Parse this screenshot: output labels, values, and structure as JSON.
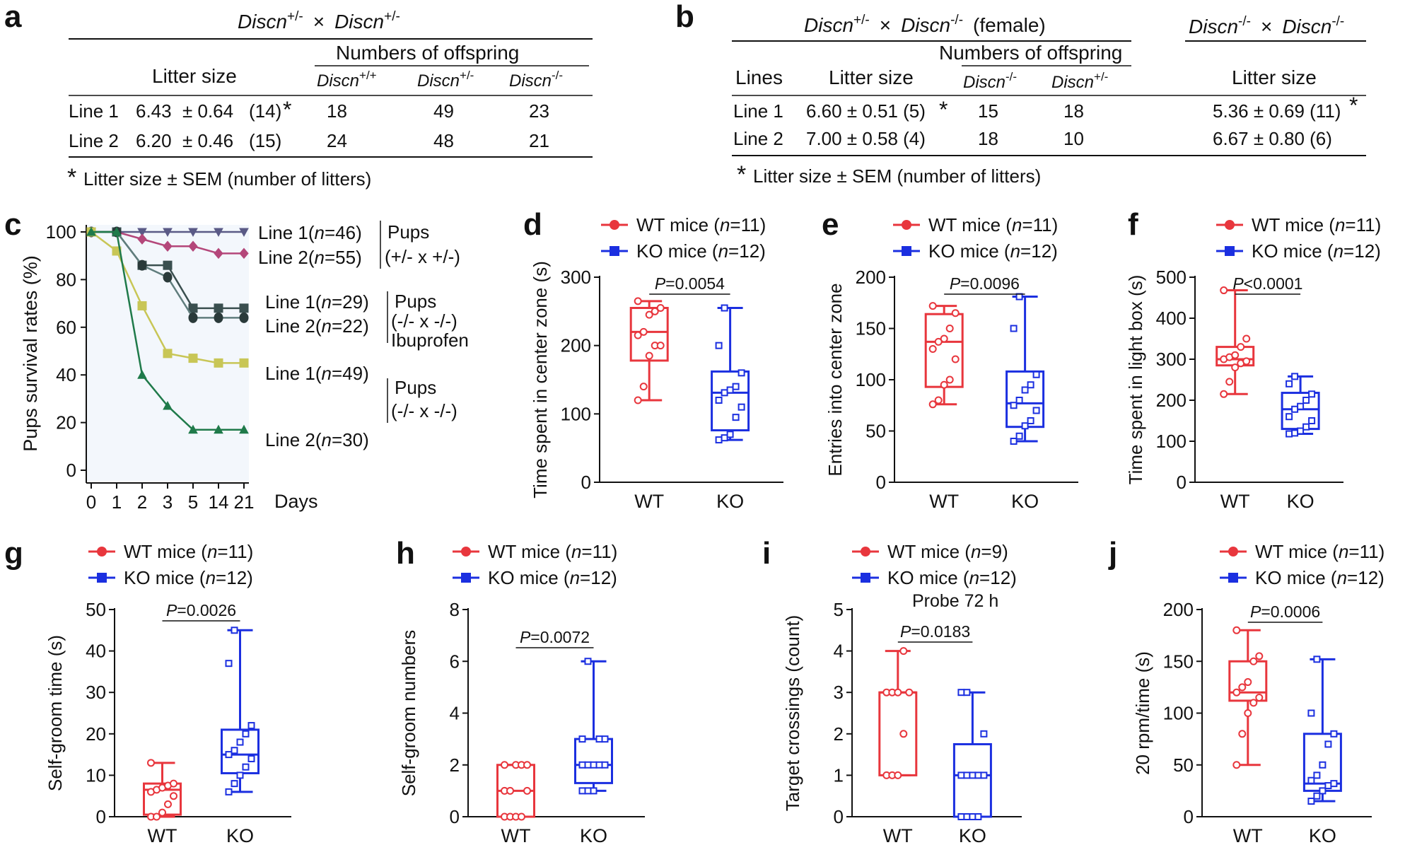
{
  "panel_labels": [
    "a",
    "b",
    "c",
    "d",
    "e",
    "f",
    "g",
    "h",
    "i",
    "j"
  ],
  "panel_a": {
    "cross_gene1": "Discn",
    "cross_sup1": "+/-",
    "cross_x": "×",
    "cross_gene2": "Discn",
    "cross_sup2": "+/-",
    "col_litter": "Litter size",
    "col_offspring": "Numbers of offspring",
    "geno": [
      {
        "gene": "Discn",
        "sup": "+/+"
      },
      {
        "gene": "Discn",
        "sup": "+/-"
      },
      {
        "gene": "Discn",
        "sup": "-/-"
      }
    ],
    "rows": [
      {
        "line": "Line 1",
        "mean": "6.43",
        "sem": "± 0.64",
        "n": "(14)",
        "star": "*",
        "c1": "18",
        "c2": "49",
        "c3": "23"
      },
      {
        "line": "Line 2",
        "mean": "6.20",
        "sem": "± 0.46",
        "n": "(15)",
        "star": "",
        "c1": "24",
        "c2": "48",
        "c3": "21"
      }
    ],
    "footnote_star": "*",
    "footnote": "Litter size ± SEM (number of litters)"
  },
  "panel_b": {
    "cross1_gene1": "Discn",
    "cross1_sup1": "+/-",
    "cross1_x": "×",
    "cross1_gene2": "Discn",
    "cross1_sup2": "-/-",
    "cross1_suffix": "(female)",
    "cross2_gene1": "Discn",
    "cross2_sup1": "-/-",
    "cross2_x": "×",
    "cross2_gene2": "Discn",
    "cross2_sup2": "-/-",
    "col_lines": "Lines",
    "col_litter": "Litter size",
    "col_offspring": "Numbers of offspring",
    "col_litter2": "Litter size",
    "geno": [
      {
        "gene": "Discn",
        "sup": "-/-"
      },
      {
        "gene": "Discn",
        "sup": "+/-"
      }
    ],
    "rows": [
      {
        "line": "Line 1",
        "litter": "6.60 ± 0.51 (5)",
        "star": "*",
        "c1": "15",
        "c2": "18",
        "litter2": "5.36 ± 0.69 (11)",
        "star2": "*"
      },
      {
        "line": "Line 2",
        "litter": "7.00 ± 0.58 (4)",
        "star": "",
        "c1": "18",
        "c2": "10",
        "litter2": "6.67 ± 0.80  (6)",
        "star2": ""
      }
    ],
    "footnote_star": "*",
    "footnote": "Litter size ± SEM (number of litters)"
  },
  "panel_c": {
    "ylabel": "Pups survival rates (%)",
    "xlabel": "Days",
    "x_ticks": [
      "0",
      "1",
      "2",
      "3",
      "5",
      "14",
      "21"
    ],
    "y_ticks": [
      "0",
      "20",
      "40",
      "60",
      "80",
      "100"
    ],
    "series": [
      {
        "name": "Line 1(n=46)",
        "label_pre": "Line 1(",
        "label_n": "n",
        "label_post": "=46)",
        "color": "#5a5a86",
        "marker": "tri-down",
        "values": [
          100,
          100,
          100,
          100,
          100,
          100,
          100
        ]
      },
      {
        "name": "Line 2(n=55)",
        "label_pre": "Line 2(",
        "label_n": "n",
        "label_post": "=55)",
        "color": "#b4477a",
        "marker": "diamond",
        "values": [
          100,
          100,
          97,
          94,
          94,
          91,
          91
        ]
      },
      {
        "name": "Line 1(n=29)",
        "label_pre": "Line 1(",
        "label_n": "n",
        "label_post": "=29)",
        "color": "#3a4f4f",
        "marker": "square",
        "values": [
          100,
          100,
          86,
          86,
          68,
          68,
          68
        ]
      },
      {
        "name": "Line 2(n=22)",
        "label_pre": "Line 2(",
        "label_n": "n",
        "label_post": "=22)",
        "color": "#607d7d",
        "marker": "hex",
        "values": [
          100,
          100,
          86,
          81,
          64,
          64,
          64
        ]
      },
      {
        "name": "Line 1(n=49)",
        "label_pre": "Line 1(",
        "label_n": "n",
        "label_post": "=49)",
        "color": "#c8c656",
        "marker": "square-fill",
        "values": [
          100,
          92,
          69,
          49,
          47,
          45,
          45
        ]
      },
      {
        "name": "Line 2(n=30)",
        "label_pre": "Line 2(",
        "label_n": "n",
        "label_post": "=30)",
        "color": "#1f7a4a",
        "marker": "triangle",
        "values": [
          100,
          100,
          40,
          27,
          17,
          17,
          17
        ]
      }
    ],
    "group1": [
      "Pups",
      "(+/- x +/-)"
    ],
    "group2": [
      "Pups",
      "(-/- x -/-)",
      "Ibuprofen"
    ],
    "group3": [
      "Pups",
      "(-/- x -/-)"
    ]
  },
  "box_legend": {
    "wt_label": "WT mice",
    "ko_label": "KO mice",
    "n_italic": "n"
  },
  "chart_data": [
    {
      "panel": "d",
      "type": "box",
      "ylabel": "Time spent in center zone (s)",
      "ylim": [
        0,
        300
      ],
      "yticks": [
        "0",
        "100",
        "200",
        "300"
      ],
      "categories": [
        "WT",
        "KO"
      ],
      "wt_n": "=11",
      "ko_n": "=12",
      "p_label": "P",
      "p_value": "=0.0054",
      "groups": [
        {
          "name": "WT",
          "min": 120,
          "q1": 178,
          "median": 220,
          "q3": 255,
          "max": 265,
          "points": [
            120,
            140,
            185,
            200,
            200,
            215,
            220,
            245,
            250,
            255,
            265
          ]
        },
        {
          "name": "KO",
          "min": 62,
          "q1": 76,
          "median": 131,
          "q3": 162,
          "max": 255,
          "points": [
            62,
            65,
            70,
            95,
            110,
            120,
            131,
            135,
            140,
            160,
            200,
            255
          ]
        }
      ]
    },
    {
      "panel": "e",
      "type": "box",
      "ylabel": "Entries into center zone",
      "ylim": [
        0,
        200
      ],
      "yticks": [
        "0",
        "50",
        "100",
        "150",
        "200"
      ],
      "categories": [
        "WT",
        "KO"
      ],
      "wt_n": "=11",
      "ko_n": "=12",
      "p_label": "P",
      "p_value": "=0.0096",
      "groups": [
        {
          "name": "WT",
          "min": 76,
          "q1": 93,
          "median": 137,
          "q3": 164,
          "max": 172,
          "points": [
            76,
            80,
            95,
            100,
            120,
            130,
            137,
            140,
            150,
            165,
            172
          ]
        },
        {
          "name": "KO",
          "min": 40,
          "q1": 54,
          "median": 77,
          "q3": 108,
          "max": 181,
          "points": [
            40,
            45,
            55,
            60,
            70,
            75,
            80,
            90,
            95,
            105,
            150,
            181
          ]
        }
      ]
    },
    {
      "panel": "f",
      "type": "box",
      "ylabel": "Time spent in light box (s)",
      "ylim": [
        0,
        500
      ],
      "yticks": [
        "0",
        "100",
        "200",
        "300",
        "400",
        "500"
      ],
      "categories": [
        "WT",
        "KO"
      ],
      "wt_n": "=11",
      "ko_n": "=12",
      "p_label": "P",
      "p_value": "<0.0001",
      "groups": [
        {
          "name": "WT",
          "min": 215,
          "q1": 285,
          "median": 300,
          "q3": 330,
          "max": 468,
          "points": [
            215,
            245,
            280,
            290,
            295,
            300,
            305,
            310,
            330,
            350,
            468
          ]
        },
        {
          "name": "KO",
          "min": 118,
          "q1": 130,
          "median": 178,
          "q3": 218,
          "max": 258,
          "points": [
            118,
            120,
            125,
            135,
            150,
            160,
            178,
            185,
            200,
            215,
            240,
            258
          ]
        }
      ]
    },
    {
      "panel": "g",
      "type": "box",
      "ylabel": "Self-groom time (s)",
      "ylim": [
        0,
        50
      ],
      "yticks": [
        "0",
        "10",
        "20",
        "30",
        "40",
        "50"
      ],
      "categories": [
        "WT",
        "KO"
      ],
      "wt_n": "=11",
      "ko_n": "=12",
      "p_label": "P",
      "p_value": "=0.0026",
      "groups": [
        {
          "name": "WT",
          "min": 0,
          "q1": 0.5,
          "median": 6.5,
          "q3": 8,
          "max": 13,
          "points": [
            0,
            0,
            1,
            3,
            5,
            6,
            6.5,
            7,
            7.5,
            8,
            13
          ]
        },
        {
          "name": "KO",
          "min": 6,
          "q1": 10.5,
          "median": 15,
          "q3": 21,
          "max": 45,
          "points": [
            6,
            8,
            10,
            12,
            14,
            15,
            16,
            18,
            20,
            22,
            37,
            45
          ]
        }
      ]
    },
    {
      "panel": "h",
      "type": "box",
      "ylabel": "Self-groom numbers",
      "ylim": [
        0,
        8
      ],
      "yticks": [
        "0",
        "2",
        "4",
        "6",
        "8"
      ],
      "categories": [
        "WT",
        "KO"
      ],
      "wt_n": "=11",
      "ko_n": "=12",
      "p_label": "P",
      "p_value": "=0.0072",
      "groups": [
        {
          "name": "WT",
          "min": 0,
          "q1": 0,
          "median": 1,
          "q3": 2,
          "max": 2,
          "points": [
            0,
            0,
            0,
            0,
            1,
            1,
            1,
            2,
            2,
            2,
            2
          ]
        },
        {
          "name": "KO",
          "min": 1,
          "q1": 1.3,
          "median": 2,
          "q3": 3,
          "max": 6,
          "points": [
            1,
            1,
            1,
            2,
            2,
            2,
            2,
            2,
            3,
            3,
            3,
            6
          ]
        }
      ]
    },
    {
      "panel": "i",
      "type": "box",
      "subtitle": "Probe 72 h",
      "ylabel": "Target crossings (count)",
      "ylim": [
        0,
        5
      ],
      "yticks": [
        "0",
        "1",
        "2",
        "3",
        "4",
        "5"
      ],
      "categories": [
        "WT",
        "KO"
      ],
      "wt_n": "=9",
      "ko_n": "=12",
      "p_label": "P",
      "p_value": "=0.0183",
      "groups": [
        {
          "name": "WT",
          "min": 1,
          "q1": 1,
          "median": 3,
          "q3": 3,
          "max": 4,
          "points": [
            1,
            1,
            1,
            2,
            3,
            3,
            3,
            3,
            4
          ]
        },
        {
          "name": "KO",
          "min": 0,
          "q1": 0,
          "median": 1,
          "q3": 1.75,
          "max": 3,
          "points": [
            0,
            0,
            0,
            0,
            1,
            1,
            1,
            1,
            1,
            2,
            3,
            3
          ]
        }
      ]
    },
    {
      "panel": "j",
      "type": "box",
      "ylabel": "20 rpm/time (s)",
      "ylim": [
        0,
        200
      ],
      "yticks": [
        "0",
        "50",
        "100",
        "150",
        "200"
      ],
      "categories": [
        "WT",
        "KO"
      ],
      "wt_n": "=11",
      "ko_n": "=12",
      "p_label": "P",
      "p_value": "=0.0006",
      "groups": [
        {
          "name": "WT",
          "min": 50,
          "q1": 112,
          "median": 120,
          "q3": 150,
          "max": 180,
          "points": [
            50,
            80,
            100,
            110,
            115,
            120,
            125,
            130,
            150,
            155,
            180
          ]
        },
        {
          "name": "KO",
          "min": 15,
          "q1": 25,
          "median": 32,
          "q3": 80,
          "max": 152,
          "points": [
            15,
            20,
            25,
            30,
            32,
            35,
            40,
            50,
            70,
            80,
            100,
            152
          ]
        }
      ]
    }
  ]
}
